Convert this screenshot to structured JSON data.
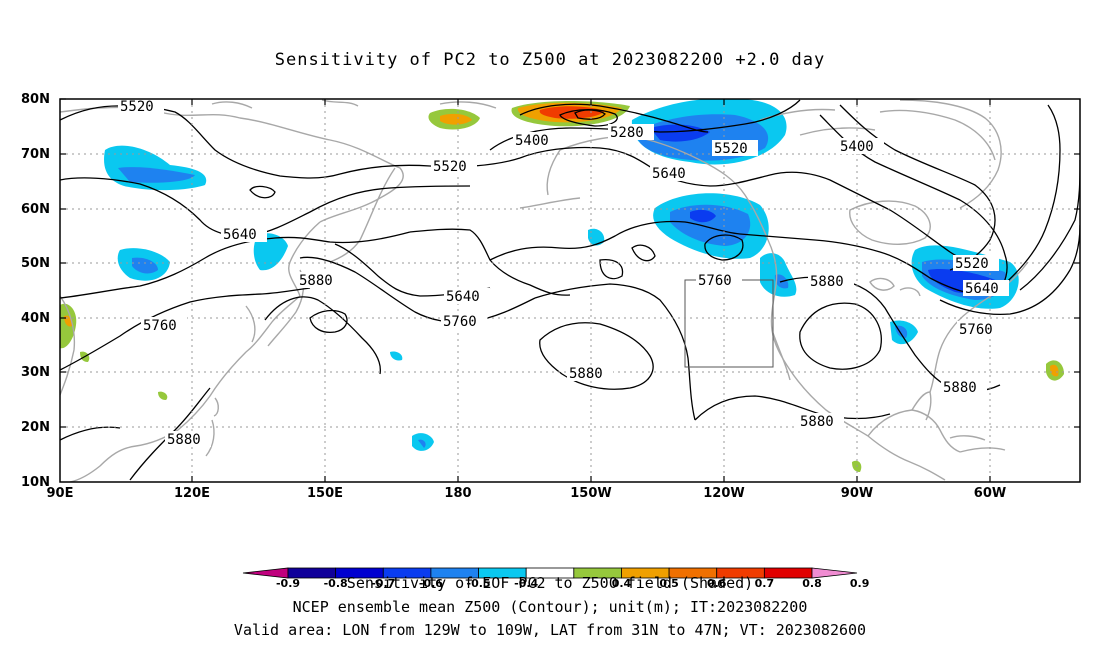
{
  "title": "Sensitivity of PC2 to Z500 at 2023082200 +2.0 day",
  "lat_labels": [
    "80N",
    "70N",
    "60N",
    "50N",
    "40N",
    "30N",
    "20N",
    "10N"
  ],
  "lon_labels": [
    "90E",
    "120E",
    "150E",
    "180",
    "150W",
    "120W",
    "90W",
    "60W"
  ],
  "contour_labels": [
    "5520",
    "5400",
    "5280",
    "5520",
    "5400",
    "5520",
    "5640",
    "5640",
    "5880",
    "5640",
    "5760",
    "5760",
    "5760",
    "5880",
    "5880",
    "5520",
    "5640",
    "5760",
    "5880",
    "5880",
    "5880"
  ],
  "colorbar": {
    "ticks": [
      "-0.9",
      "-0.8",
      "-0.7",
      "-0.6",
      "-0.5",
      "-0.4",
      "0.4",
      "0.5",
      "0.6",
      "0.7",
      "0.8",
      "0.9"
    ],
    "colors": [
      "#c0007e",
      "#10009a",
      "#0000d0",
      "#0a3cf0",
      "#1e82f0",
      "#0ac8f0",
      "#ffffff",
      "#96c83c",
      "#f0a000",
      "#f07000",
      "#f03c00",
      "#e10000",
      "#f08cd2"
    ]
  },
  "captions": {
    "line1": "Sensitivity of EOF PC2 to Z500 field (Shaded)",
    "line2": "NCEP ensemble mean Z500 (Contour); unit(m); IT:2023082200",
    "line3": "Valid area: LON from 129W to 109W, LAT from 31N to 47N; VT: 2023082600"
  }
}
